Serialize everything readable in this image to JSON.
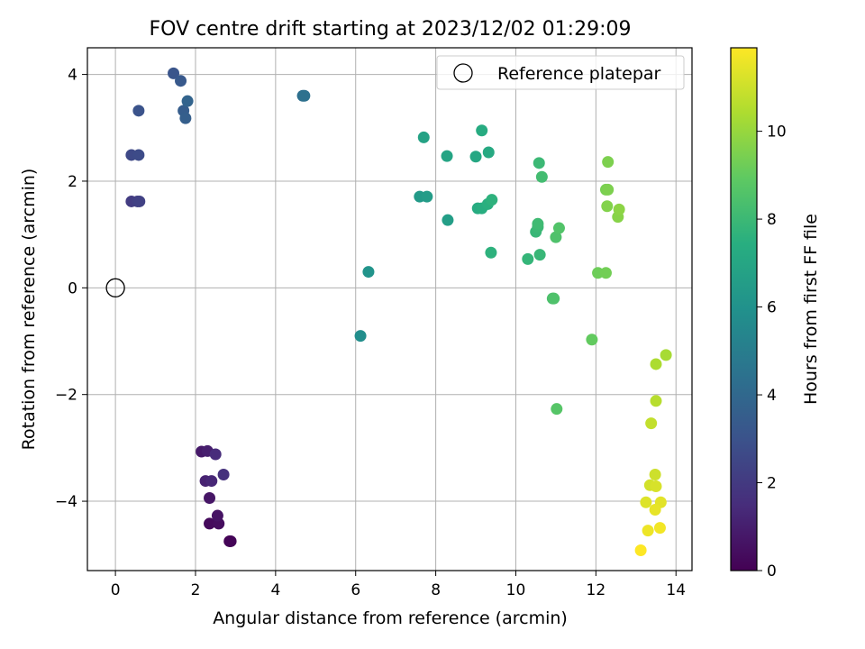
{
  "chart_data": {
    "type": "scatter",
    "title": "FOV centre drift starting at 2023/12/02 01:29:09",
    "xlabel": "Angular distance from reference (arcmin)",
    "ylabel": "Rotation from reference (arcmin)",
    "xlim": [
      -0.7,
      14.4
    ],
    "ylim": [
      -5.3,
      4.5
    ],
    "xticks": [
      0,
      2,
      4,
      6,
      8,
      10,
      12,
      14
    ],
    "yticks": [
      -4,
      -2,
      0,
      2,
      4
    ],
    "xtick_labels": [
      "0",
      "2",
      "4",
      "6",
      "8",
      "10",
      "12",
      "14"
    ],
    "ytick_labels": [
      "−4",
      "−2",
      "0",
      "2",
      "4"
    ],
    "grid": true,
    "legend": {
      "placement": "top-right",
      "entries": [
        "Reference platepar"
      ]
    },
    "reference_point": {
      "x": 0,
      "y": 0,
      "label": "Reference platepar"
    },
    "colorbar": {
      "label": "Hours from first FF file",
      "colormap": "viridis",
      "range": [
        0,
        11.9
      ],
      "ticks": [
        0,
        2,
        4,
        6,
        8,
        10
      ],
      "tick_labels": [
        "0",
        "2",
        "4",
        "6",
        "8",
        "10"
      ]
    },
    "points": [
      {
        "x": 2.85,
        "y": -4.75,
        "t": 0.0
      },
      {
        "x": 2.88,
        "y": -4.75,
        "t": 0.1
      },
      {
        "x": 2.35,
        "y": -4.42,
        "t": 0.3
      },
      {
        "x": 2.58,
        "y": -4.42,
        "t": 0.4
      },
      {
        "x": 2.55,
        "y": -4.27,
        "t": 0.6
      },
      {
        "x": 2.35,
        "y": -3.94,
        "t": 0.7
      },
      {
        "x": 2.15,
        "y": -3.07,
        "t": 0.8
      },
      {
        "x": 2.3,
        "y": -3.06,
        "t": 1.0
      },
      {
        "x": 2.25,
        "y": -3.62,
        "t": 1.1
      },
      {
        "x": 2.4,
        "y": -3.62,
        "t": 1.3
      },
      {
        "x": 2.5,
        "y": -3.12,
        "t": 1.5
      },
      {
        "x": 2.7,
        "y": -3.5,
        "t": 1.7
      },
      {
        "x": 0.4,
        "y": 1.62,
        "t": 2.1
      },
      {
        "x": 0.55,
        "y": 1.62,
        "t": 2.2
      },
      {
        "x": 0.6,
        "y": 1.62,
        "t": 2.3
      },
      {
        "x": 0.4,
        "y": 2.49,
        "t": 2.6
      },
      {
        "x": 0.58,
        "y": 2.49,
        "t": 2.7
      },
      {
        "x": 0.58,
        "y": 3.32,
        "t": 3.0
      },
      {
        "x": 1.45,
        "y": 4.02,
        "t": 3.1
      },
      {
        "x": 1.63,
        "y": 3.88,
        "t": 3.3
      },
      {
        "x": 1.7,
        "y": 3.32,
        "t": 3.5
      },
      {
        "x": 1.75,
        "y": 3.18,
        "t": 3.6
      },
      {
        "x": 1.8,
        "y": 3.5,
        "t": 3.8
      },
      {
        "x": 4.68,
        "y": 3.6,
        "t": 4.3
      },
      {
        "x": 4.72,
        "y": 3.6,
        "t": 4.4
      },
      {
        "x": 6.12,
        "y": -0.9,
        "t": 5.8
      },
      {
        "x": 6.32,
        "y": 0.3,
        "t": 6.1
      },
      {
        "x": 7.6,
        "y": 1.71,
        "t": 6.4
      },
      {
        "x": 7.78,
        "y": 1.71,
        "t": 6.5
      },
      {
        "x": 8.3,
        "y": 1.27,
        "t": 6.6
      },
      {
        "x": 7.7,
        "y": 2.82,
        "t": 6.8
      },
      {
        "x": 8.28,
        "y": 2.47,
        "t": 6.9
      },
      {
        "x": 9.0,
        "y": 2.46,
        "t": 7.1
      },
      {
        "x": 9.32,
        "y": 2.54,
        "t": 7.2
      },
      {
        "x": 9.15,
        "y": 2.95,
        "t": 7.3
      },
      {
        "x": 9.05,
        "y": 1.49,
        "t": 7.3
      },
      {
        "x": 9.15,
        "y": 1.49,
        "t": 7.4
      },
      {
        "x": 9.3,
        "y": 1.57,
        "t": 7.5
      },
      {
        "x": 9.4,
        "y": 1.65,
        "t": 7.6
      },
      {
        "x": 9.38,
        "y": 0.66,
        "t": 7.6
      },
      {
        "x": 10.3,
        "y": 0.54,
        "t": 7.8
      },
      {
        "x": 10.6,
        "y": 0.62,
        "t": 7.9
      },
      {
        "x": 10.5,
        "y": 1.05,
        "t": 7.9
      },
      {
        "x": 10.55,
        "y": 1.14,
        "t": 8.0
      },
      {
        "x": 10.55,
        "y": 1.2,
        "t": 8.1
      },
      {
        "x": 10.58,
        "y": 2.34,
        "t": 8.0
      },
      {
        "x": 10.65,
        "y": 2.08,
        "t": 8.2
      },
      {
        "x": 10.92,
        "y": -0.2,
        "t": 8.4
      },
      {
        "x": 10.95,
        "y": -0.2,
        "t": 8.5
      },
      {
        "x": 11.0,
        "y": 0.95,
        "t": 8.5
      },
      {
        "x": 11.08,
        "y": 1.12,
        "t": 8.6
      },
      {
        "x": 11.02,
        "y": -2.27,
        "t": 8.7
      },
      {
        "x": 11.9,
        "y": -0.97,
        "t": 9.0
      },
      {
        "x": 12.05,
        "y": 0.28,
        "t": 9.2
      },
      {
        "x": 12.25,
        "y": 0.28,
        "t": 9.3
      },
      {
        "x": 12.25,
        "y": 1.84,
        "t": 9.4
      },
      {
        "x": 12.3,
        "y": 1.84,
        "t": 9.5
      },
      {
        "x": 12.28,
        "y": 1.53,
        "t": 9.6
      },
      {
        "x": 12.3,
        "y": 2.36,
        "t": 9.5
      },
      {
        "x": 12.55,
        "y": 1.33,
        "t": 9.7
      },
      {
        "x": 12.58,
        "y": 1.47,
        "t": 9.8
      },
      {
        "x": 13.75,
        "y": -1.26,
        "t": 10.3
      },
      {
        "x": 13.5,
        "y": -1.43,
        "t": 10.4
      },
      {
        "x": 13.5,
        "y": -2.12,
        "t": 10.6
      },
      {
        "x": 13.38,
        "y": -2.54,
        "t": 10.8
      },
      {
        "x": 13.48,
        "y": -3.5,
        "t": 11.0
      },
      {
        "x": 13.35,
        "y": -3.7,
        "t": 11.1
      },
      {
        "x": 13.5,
        "y": -3.72,
        "t": 11.2
      },
      {
        "x": 13.25,
        "y": -4.02,
        "t": 11.3
      },
      {
        "x": 13.62,
        "y": -4.02,
        "t": 11.4
      },
      {
        "x": 13.48,
        "y": -4.16,
        "t": 11.5
      },
      {
        "x": 13.3,
        "y": -4.55,
        "t": 11.6
      },
      {
        "x": 13.6,
        "y": -4.5,
        "t": 11.7
      },
      {
        "x": 13.12,
        "y": -4.92,
        "t": 11.9
      }
    ]
  }
}
